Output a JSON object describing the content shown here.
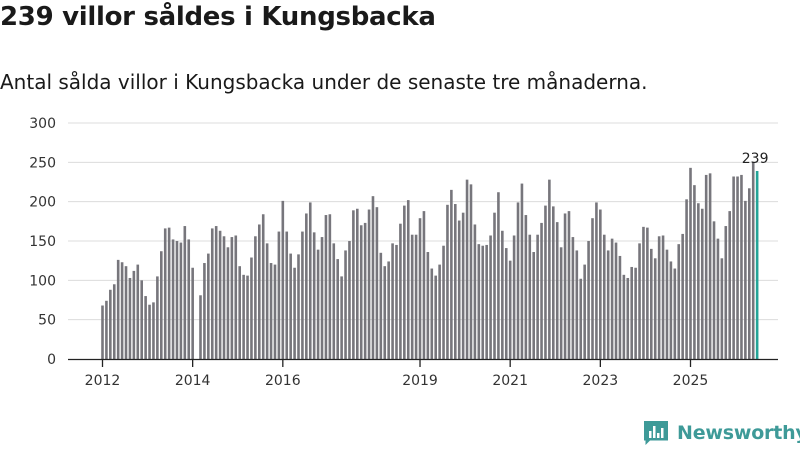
{
  "chart_data": {
    "type": "bar",
    "title": "239 villor såldes i Kungsbacka",
    "subtitle": "Antal sålda villor i Kungsbacka under de senaste tre månaderna.",
    "ylim": [
      0,
      300
    ],
    "y_ticks": [
      0,
      50,
      100,
      150,
      200,
      250,
      300
    ],
    "x_tick_labels": [
      "2012",
      "2014",
      "2016",
      "2019",
      "2021",
      "2023",
      "2025"
    ],
    "x_tick_bar_index": [
      0,
      23,
      46,
      81,
      104,
      127,
      150
    ],
    "grid": true,
    "series_color": "#77767c",
    "highlight_color": "#24a497",
    "highlight_label": "239",
    "values": [
      68,
      74,
      88,
      95,
      126,
      123,
      118,
      103,
      112,
      120,
      100,
      80,
      69,
      72,
      105,
      137,
      166,
      167,
      152,
      150,
      148,
      169,
      152,
      116,
      0,
      81,
      122,
      134,
      166,
      169,
      163,
      156,
      142,
      155,
      157,
      118,
      107,
      106,
      129,
      156,
      171,
      184,
      147,
      122,
      120,
      162,
      201,
      162,
      134,
      116,
      133,
      162,
      185,
      199,
      161,
      139,
      155,
      183,
      184,
      147,
      127,
      105,
      138,
      150,
      189,
      191,
      170,
      173,
      190,
      207,
      193,
      135,
      118,
      124,
      147,
      145,
      172,
      195,
      202,
      158,
      158,
      179,
      188,
      136,
      115,
      106,
      120,
      144,
      196,
      215,
      197,
      176,
      186,
      228,
      222,
      171,
      146,
      144,
      145,
      157,
      186,
      212,
      163,
      141,
      125,
      157,
      199,
      223,
      183,
      158,
      136,
      158,
      173,
      195,
      228,
      194,
      174,
      142,
      185,
      188,
      155,
      138,
      102,
      120,
      150,
      179,
      199,
      190,
      158,
      138,
      153,
      148,
      131,
      107,
      103,
      117,
      116,
      147,
      168,
      167,
      140,
      128,
      156,
      157,
      139,
      124,
      115,
      146,
      159,
      203,
      243,
      221,
      198,
      191,
      234,
      236,
      175,
      153,
      128,
      169,
      188,
      232,
      232,
      234,
      201,
      217,
      250,
      239
    ]
  },
  "brand": {
    "name": "Newsworthy",
    "logo_icon": "newsworthy-bar-chart-logo-icon",
    "logo_color": "#3e9a98"
  }
}
